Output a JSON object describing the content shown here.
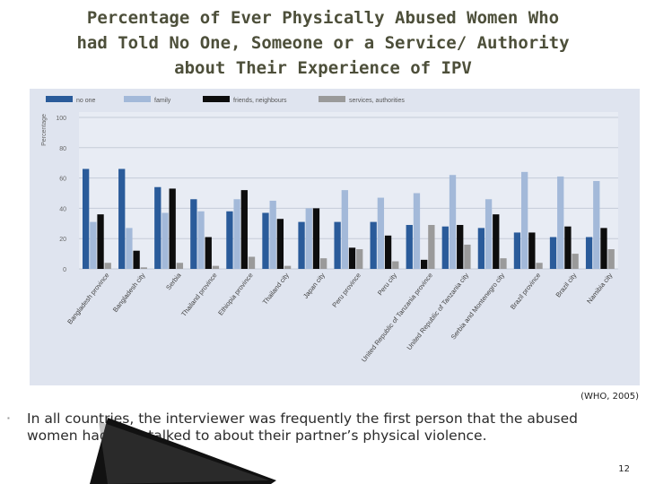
{
  "title_lines": [
    "Percentage of Ever Physically Abused Women Who",
    "had Told No One, Someone or a Service/ Authority",
    "about Their Experience of IPV"
  ],
  "citation": "(WHO, 2005)",
  "bullet": "In all countries, the interviewer was frequently the first person that the abused women had ever talked to about their partner’s physical violence.",
  "page_number": "12",
  "chart_data": {
    "type": "bar",
    "title": "",
    "ylabel": "Percentage",
    "xlabel": "",
    "ylim": [
      0,
      100
    ],
    "yticks": [
      0,
      20,
      40,
      60,
      80,
      100
    ],
    "grid": true,
    "legend_position": "top",
    "categories": [
      "Bangladesh province",
      "Bangladesh city",
      "Serbia",
      "Thailand province",
      "Ethiopia province",
      "Thailand city",
      "Japan city",
      "Peru province",
      "Peru city",
      "United Republic of Tanzania province",
      "United Republic of Tanzania city",
      "Serbia and Montenegro city",
      "Brazil province",
      "Brazil city",
      "Namibia city"
    ],
    "series": [
      {
        "name": "no one",
        "color": "#2a5b9a",
        "values": [
          66,
          66,
          54,
          46,
          38,
          37,
          31,
          31,
          31,
          29,
          28,
          27,
          24,
          21,
          21
        ]
      },
      {
        "name": "family",
        "color": "#a3b9d9",
        "values": [
          31,
          27,
          37,
          38,
          46,
          45,
          40,
          52,
          47,
          50,
          62,
          46,
          64,
          61,
          58
        ]
      },
      {
        "name": "friends, neighbours",
        "color": "#0d0d0d",
        "values": [
          36,
          12,
          53,
          21,
          52,
          33,
          40,
          14,
          22,
          6,
          29,
          36,
          24,
          28,
          27
        ]
      },
      {
        "name": "services, authorities",
        "color": "#9a9a9a",
        "values": [
          4,
          1,
          4,
          2,
          8,
          2,
          7,
          13,
          5,
          29,
          16,
          7,
          4,
          10,
          13
        ]
      }
    ]
  }
}
